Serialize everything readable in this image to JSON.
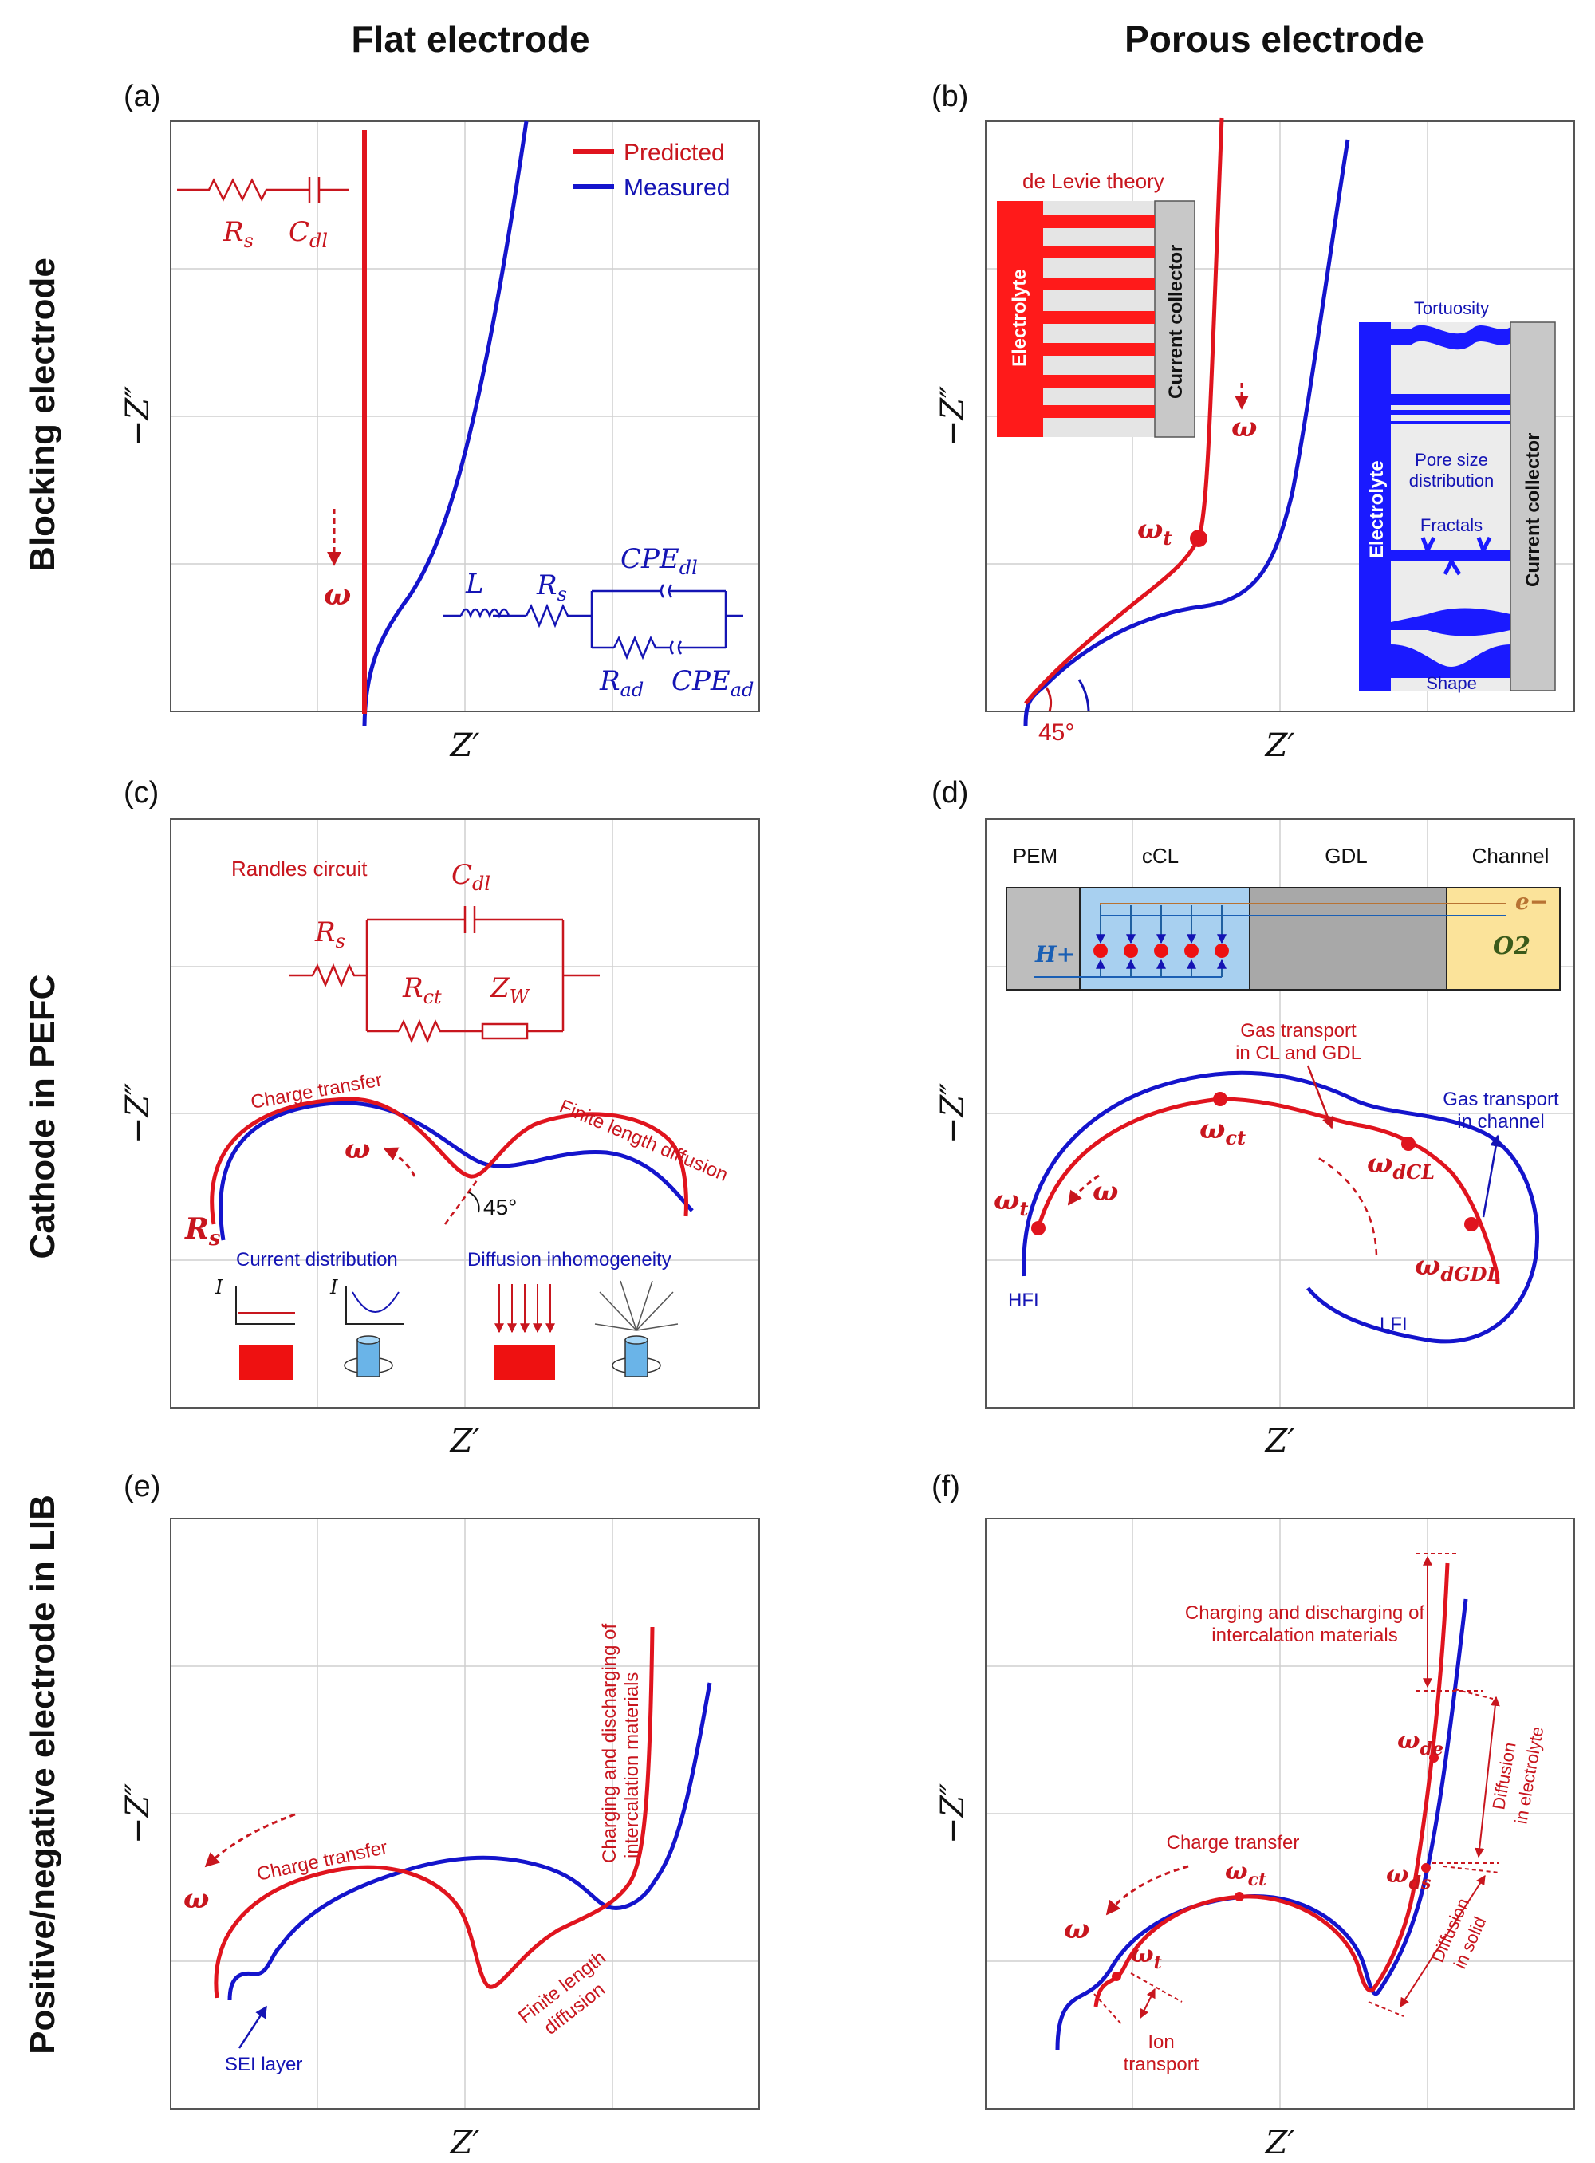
{
  "headers": {
    "left": "Flat electrode",
    "right": "Porous electrode"
  },
  "rows": {
    "r1": "Blocking electrode",
    "r2": "Cathode in PEFC",
    "r3": "Positive/negative electrode in LIB"
  },
  "panels": {
    "a": "(a)",
    "b": "(b)",
    "c": "(c)",
    "d": "(d)",
    "e": "(e)",
    "f": "(f)"
  },
  "axes": {
    "x": "Z′",
    "y": "−Z″"
  },
  "colors": {
    "predicted": "#e0141e",
    "measured": "#1414cc"
  },
  "panel_a": {
    "legend_predicted": "Predicted",
    "legend_measured": "Measured",
    "omega": "ω",
    "circuit_red": {
      "rs": "R",
      "rs_sub": "s",
      "cdl": "C",
      "cdl_sub": "dl"
    },
    "circuit_blue": {
      "l": "L",
      "rs": "R",
      "rs_sub": "s",
      "cpe_dl": "CPE",
      "cpe_dl_sub": "dl",
      "rad": "R",
      "rad_sub": "ad",
      "cpe_ad": "CPE",
      "cpe_ad_sub": "ad"
    }
  },
  "panel_b": {
    "delevie": "de Levie theory",
    "electrolyte": "Electrolyte",
    "collector": "Current collector",
    "omega": "ω",
    "omega_t": "ω",
    "omega_t_sub": "t",
    "angle": "45°",
    "tortuosity": "Tortuosity",
    "pore_size_1": "Pore size",
    "pore_size_2": "distribution",
    "fractals": "Fractals",
    "shape": "Shape"
  },
  "panel_c": {
    "randles": "Randles circuit",
    "rs": "R",
    "rs_sub": "s",
    "cdl": "C",
    "cdl_sub": "dl",
    "rct": "R",
    "rct_sub": "ct",
    "zw": "Z",
    "zw_sub": "W",
    "charge_transfer": "Charge transfer",
    "finite_length": "Finite length diffusion",
    "omega": "ω",
    "angle": "45°",
    "rs_label": "R",
    "rs_label_sub": "s",
    "current_distribution": "Current distribution",
    "diffusion_inhomogeneity": "Diffusion inhomogeneity",
    "i_axis": "I"
  },
  "panel_d": {
    "pem": "PEM",
    "ccl": "cCL",
    "gdl": "GDL",
    "channel": "Channel",
    "h_plus": "H+",
    "e_minus": "e−",
    "o2": "O2",
    "gas_cl_1": "Gas transport",
    "gas_cl_2": "in CL and GDL",
    "gas_ch_1": "Gas transport",
    "gas_ch_2": "in channel",
    "omega_ct": "ω",
    "omega_ct_sub": "ct",
    "omega_dcl": "ω",
    "omega_dcl_sub": "dCL",
    "omega_dgdl": "ω",
    "omega_dgdl_sub": "dGDL",
    "omega_t": "ω",
    "omega_t_sub": "t",
    "omega": "ω",
    "hfi": "HFI",
    "lfi": "LFI"
  },
  "panel_e": {
    "omega": "ω",
    "charge_transfer": "Charge transfer",
    "finite_1": "Finite length",
    "finite_2": "diffusion",
    "charging_1": "Charging and discharging of",
    "charging_2": "intercalation materials",
    "sei": "SEI layer"
  },
  "panel_f": {
    "charging_1": "Charging and discharging of",
    "charging_2": "intercalation materials",
    "diff_el_1": "Diffusion",
    "diff_el_2": "in electrolyte",
    "diff_solid_1": "Diffusion",
    "diff_solid_2": "in solid",
    "charge_transfer": "Charge transfer",
    "omega": "ω",
    "omega_ct": "ω",
    "omega_ct_sub": "ct",
    "omega_de": "ω",
    "omega_de_sub": "de",
    "omega_ds": "ω",
    "omega_ds_sub": "ds",
    "omega_t": "ω",
    "omega_t_sub": "t",
    "ion_1": "Ion",
    "ion_2": "transport"
  }
}
